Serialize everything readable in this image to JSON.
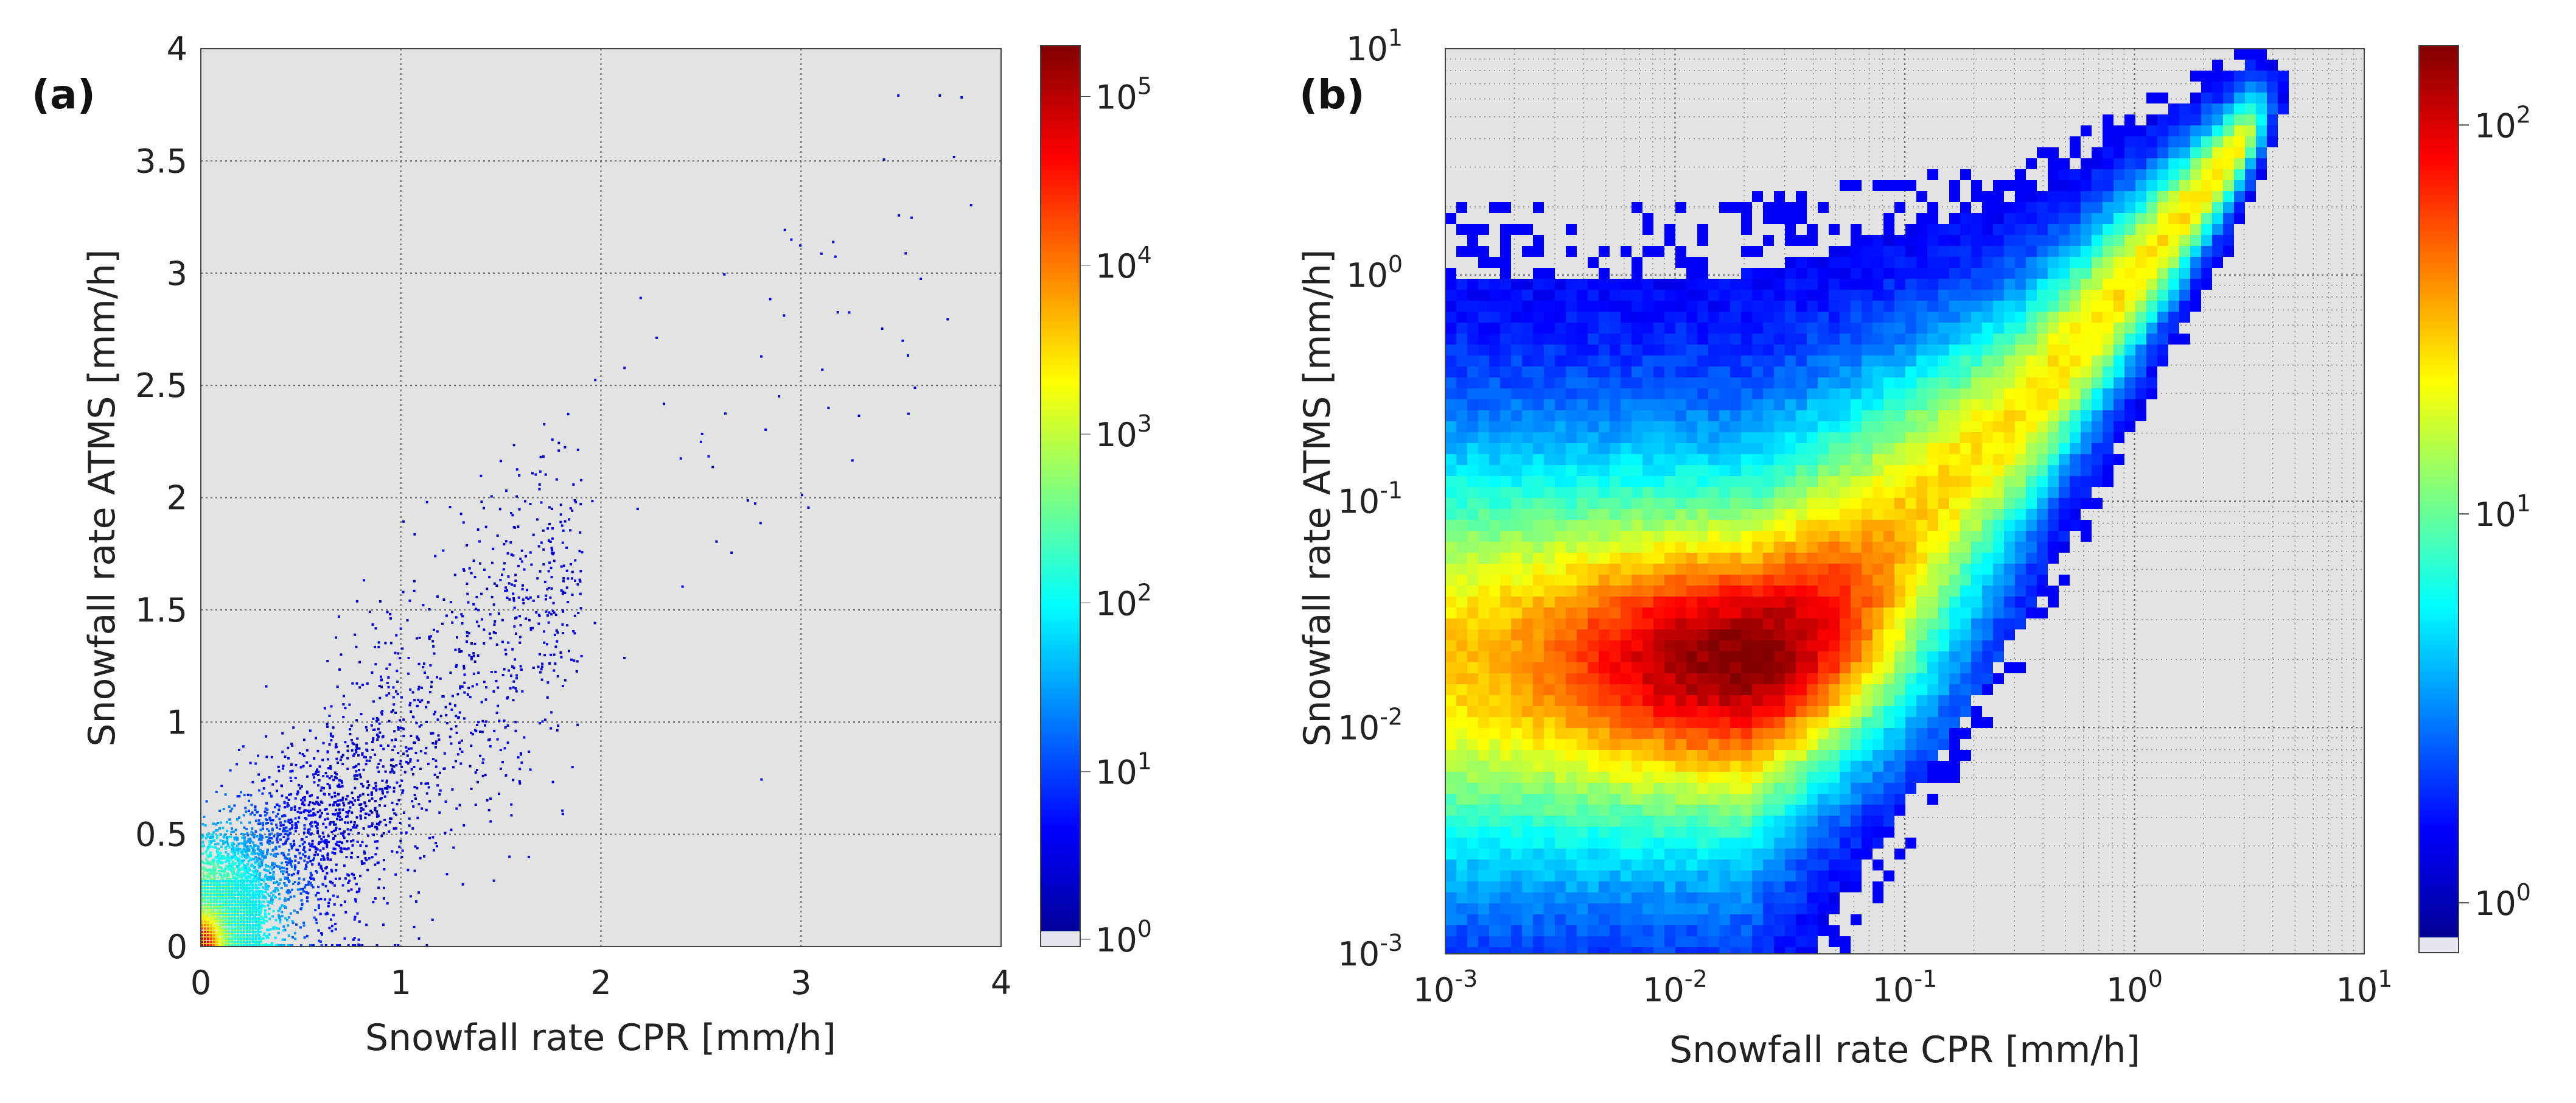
{
  "chart_data": [
    {
      "type": "heatmap",
      "panel_label": "(a)",
      "xlabel": "Snowfall rate CPR [mm/h]",
      "ylabel": "Snowfall rate ATMS [mm/h]",
      "x_scale": "linear",
      "y_scale": "linear",
      "xlim": [
        0,
        4
      ],
      "ylim": [
        0,
        4
      ],
      "xticks": [
        {
          "v": 0,
          "t": "0"
        },
        {
          "v": 1,
          "t": "1"
        },
        {
          "v": 2,
          "t": "2"
        },
        {
          "v": 3,
          "t": "3"
        },
        {
          "v": 4,
          "t": "4"
        }
      ],
      "yticks": [
        {
          "v": 0,
          "t": "0"
        },
        {
          "v": 0.5,
          "t": "0.5"
        },
        {
          "v": 1,
          "t": "1"
        },
        {
          "v": 1.5,
          "t": "1.5"
        },
        {
          "v": 2,
          "t": "2"
        },
        {
          "v": 2.5,
          "t": "2.5"
        },
        {
          "v": 3,
          "t": "3"
        },
        {
          "v": 3.5,
          "t": "3.5"
        },
        {
          "v": 4,
          "t": "4"
        }
      ],
      "grid": true,
      "colorbar": {
        "scale": "log",
        "range": [
          1,
          200000
        ],
        "ticks": [
          {
            "v": 1,
            "t": "10",
            "e": "0"
          },
          {
            "v": 10,
            "t": "10",
            "e": "1"
          },
          {
            "v": 100,
            "t": "10",
            "e": "2"
          },
          {
            "v": 1000,
            "t": "10",
            "e": "3"
          },
          {
            "v": 10000,
            "t": "10",
            "e": "4"
          },
          {
            "v": 100000,
            "t": "10",
            "e": "5"
          }
        ]
      },
      "distribution": {
        "description_free": true,
        "peak": [
          0.02,
          0.04
        ],
        "spread_along_1to1": 1.1,
        "outliers_max": [
          3.9,
          3.9
        ]
      }
    },
    {
      "type": "heatmap",
      "panel_label": "(b)",
      "xlabel": "Snowfall rate CPR [mm/h]",
      "ylabel": "Snowfall rate ATMS [mm/h]",
      "x_scale": "log",
      "y_scale": "log",
      "xlim": [
        0.001,
        10
      ],
      "ylim": [
        0.001,
        10
      ],
      "xticks": [
        {
          "v": 0.001,
          "t": "10",
          "e": "-3"
        },
        {
          "v": 0.01,
          "t": "10",
          "e": "-2"
        },
        {
          "v": 0.1,
          "t": "10",
          "e": "-1"
        },
        {
          "v": 1,
          "t": "10",
          "e": "0"
        },
        {
          "v": 10,
          "t": "10",
          "e": "1"
        }
      ],
      "yticks": [
        {
          "v": 0.001,
          "t": "10",
          "e": "-3"
        },
        {
          "v": 0.01,
          "t": "10",
          "e": "-2"
        },
        {
          "v": 0.1,
          "t": "10",
          "e": "-1"
        },
        {
          "v": 1,
          "t": "10",
          "e": "0"
        },
        {
          "v": 10,
          "t": "10",
          "e": "1"
        }
      ],
      "grid": true,
      "colorbar": {
        "scale": "log",
        "range": [
          0.8,
          160
        ],
        "ticks": [
          {
            "v": 1,
            "t": "10",
            "e": "0"
          },
          {
            "v": 10,
            "t": "10",
            "e": "1"
          },
          {
            "v": 100,
            "t": "10",
            "e": "2"
          }
        ]
      },
      "distribution": {
        "peak": [
          0.02,
          0.02
        ],
        "converge_at": [
          2,
          2
        ]
      }
    }
  ],
  "colors": {
    "axes_background": "#e3e3e3",
    "colormap": "jet",
    "colorbar_under": "#e6e6ef"
  }
}
